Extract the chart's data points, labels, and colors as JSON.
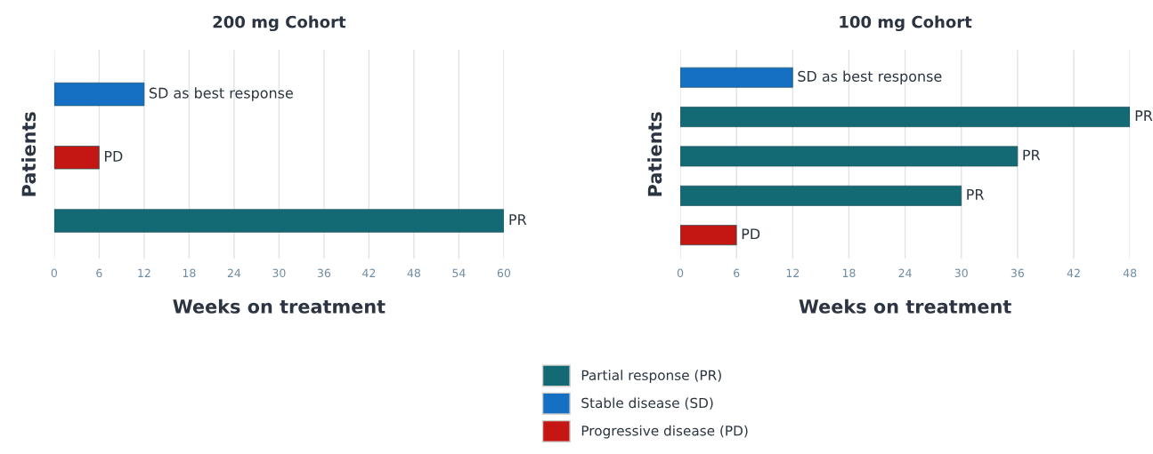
{
  "chart_data": [
    {
      "type": "bar",
      "orientation": "horizontal",
      "stacked": true,
      "title": "200 mg Cohort",
      "xlabel": "Weeks on treatment",
      "ylabel": "Patients",
      "categories": [
        null,
        null,
        null
      ],
      "series": [
        {
          "name": "Partial response (PR)",
          "color": "#146a74",
          "values": [
            null,
            null,
            60
          ],
          "value_labels": [
            null,
            null,
            "PR"
          ]
        },
        {
          "name": "Stable disease (SD)",
          "color": "#1570c4",
          "values": [
            12,
            null,
            null
          ],
          "value_labels": [
            "SD as best response",
            null,
            null
          ]
        },
        {
          "name": "Progressive disease (PD)",
          "color": "#c41612",
          "values": [
            null,
            6,
            null
          ],
          "value_labels": [
            null,
            "PD",
            null
          ]
        }
      ],
      "xlim": [
        0,
        60
      ],
      "xticks": [
        0,
        6,
        12,
        18,
        24,
        30,
        36,
        42,
        48,
        54,
        60
      ],
      "grid": "x",
      "tick_labels": "x",
      "legend": "bottom"
    },
    {
      "type": "bar",
      "orientation": "horizontal",
      "stacked": true,
      "title": "100 mg Cohort",
      "xlabel": "Weeks on treatment",
      "ylabel": "Patients",
      "categories": [
        null,
        null,
        null,
        null,
        null
      ],
      "series": [
        {
          "color": "#146a74",
          "values": [
            null,
            48,
            36,
            30,
            null
          ],
          "value_labels": [
            null,
            "PR",
            "PR",
            "PR",
            null
          ]
        },
        {
          "color": "#1570c4",
          "values": [
            12,
            null,
            null,
            null,
            null
          ],
          "value_labels": [
            "SD as best response",
            null,
            null,
            null,
            null
          ]
        },
        {
          "color": "#c41612",
          "values": [
            null,
            null,
            null,
            null,
            6
          ],
          "value_labels": [
            null,
            null,
            null,
            null,
            "PD"
          ]
        }
      ],
      "xlim": [
        0,
        48
      ],
      "xticks": [
        0,
        6,
        12,
        18,
        24,
        30,
        36,
        42,
        48
      ],
      "grid": "x",
      "tick_labels": "x"
    }
  ]
}
